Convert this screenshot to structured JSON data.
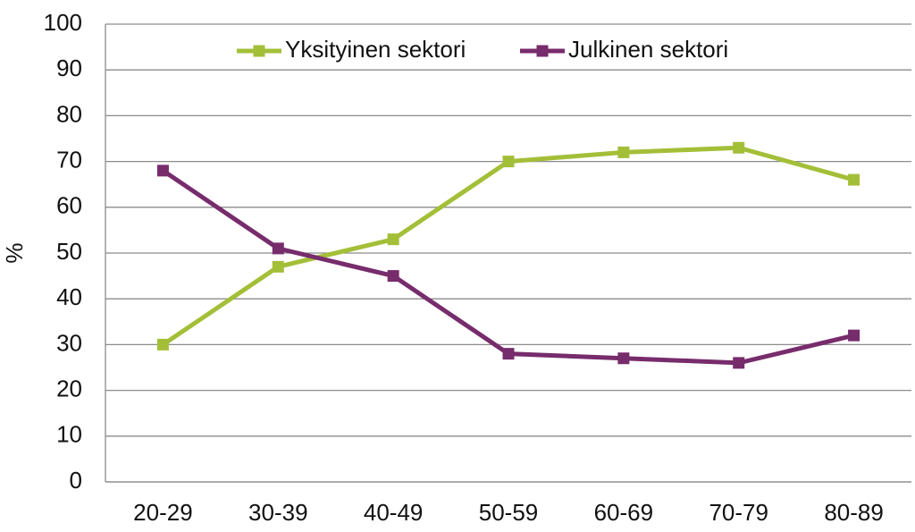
{
  "chart_data": {
    "type": "line",
    "y_label": "%",
    "categories": [
      "20-29",
      "30-39",
      "40-49",
      "50-59",
      "60-69",
      "70-79",
      "80-89"
    ],
    "series": [
      {
        "name": "Yksityinen sektori",
        "color": "#a3bf38",
        "values": [
          30,
          47,
          53,
          70,
          72,
          73,
          66
        ]
      },
      {
        "name": "Julkinen sektori",
        "color": "#772c6c",
        "values": [
          68,
          51,
          45,
          28,
          27,
          26,
          32
        ]
      }
    ],
    "ylim": [
      0,
      100
    ],
    "yticks": [
      0,
      10,
      20,
      30,
      40,
      50,
      60,
      70,
      80,
      90,
      100
    ],
    "grid": true,
    "legend": "top"
  }
}
